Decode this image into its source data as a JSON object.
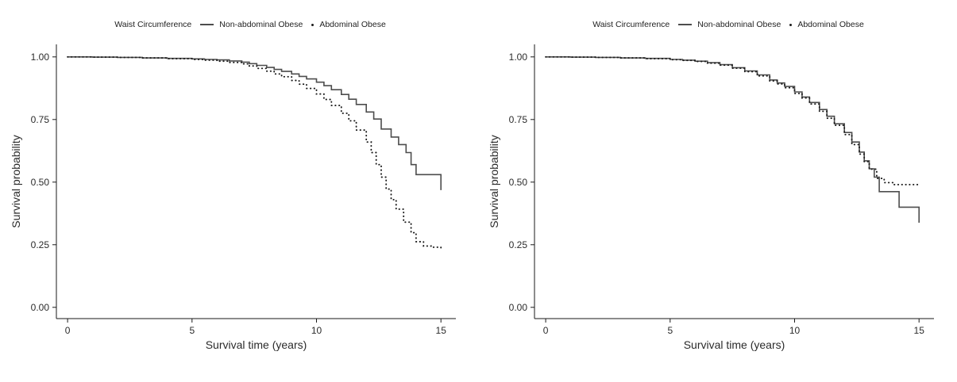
{
  "figure": {
    "background": "#ffffff",
    "line_color_solid": "#4d4d4d",
    "line_color_dotted": "#1b1b1b"
  },
  "chart_data": [
    {
      "type": "line",
      "subtype": "step-after",
      "title": "",
      "legend_title": "Waist Circumference",
      "legend_position": "top",
      "xlabel": "Survival time (years)",
      "ylabel": "Survival probability",
      "xlim": [
        -0.45,
        15.6
      ],
      "ylim": [
        -0.045,
        1.05
      ],
      "xticks": [
        0,
        5,
        10,
        15
      ],
      "xtick_labels": [
        "0",
        "5",
        "10",
        "15"
      ],
      "yticks": [
        0,
        0.25,
        0.5,
        0.75,
        1
      ],
      "ytick_labels": [
        "0.00",
        "0.25",
        "0.50",
        "0.75",
        "1.00"
      ],
      "grid": false,
      "series": [
        {
          "name": "Non-abdominal Obese",
          "style": "solid",
          "color": "#4d4d4d",
          "points": [
            [
              0,
              1
            ],
            [
              1,
              0.999
            ],
            [
              2,
              0.998
            ],
            [
              3,
              0.996
            ],
            [
              4,
              0.994
            ],
            [
              5,
              0.992
            ],
            [
              5.5,
              0.99
            ],
            [
              6,
              0.988
            ],
            [
              6.5,
              0.984
            ],
            [
              7,
              0.979
            ],
            [
              7.3,
              0.973
            ],
            [
              7.6,
              0.966
            ],
            [
              8,
              0.958
            ],
            [
              8.3,
              0.95
            ],
            [
              8.6,
              0.942
            ],
            [
              9,
              0.932
            ],
            [
              9.3,
              0.922
            ],
            [
              9.6,
              0.912
            ],
            [
              10,
              0.899
            ],
            [
              10.3,
              0.885
            ],
            [
              10.6,
              0.869
            ],
            [
              11,
              0.85
            ],
            [
              11.3,
              0.831
            ],
            [
              11.6,
              0.81
            ],
            [
              12,
              0.78
            ],
            [
              12.3,
              0.752
            ],
            [
              12.6,
              0.712
            ],
            [
              13,
              0.68
            ],
            [
              13.3,
              0.65
            ],
            [
              13.6,
              0.618
            ],
            [
              13.8,
              0.57
            ],
            [
              14,
              0.53
            ],
            [
              15,
              0.468
            ]
          ]
        },
        {
          "name": "Abdominal Obese",
          "style": "dotted",
          "color": "#1b1b1b",
          "points": [
            [
              0,
              1
            ],
            [
              1,
              0.999
            ],
            [
              2,
              0.998
            ],
            [
              3,
              0.996
            ],
            [
              4,
              0.993
            ],
            [
              5,
              0.99
            ],
            [
              5.5,
              0.987
            ],
            [
              6,
              0.983
            ],
            [
              6.5,
              0.978
            ],
            [
              7,
              0.972
            ],
            [
              7.3,
              0.964
            ],
            [
              7.6,
              0.954
            ],
            [
              8,
              0.943
            ],
            [
              8.3,
              0.932
            ],
            [
              8.6,
              0.921
            ],
            [
              9,
              0.906
            ],
            [
              9.3,
              0.891
            ],
            [
              9.6,
              0.874
            ],
            [
              10,
              0.852
            ],
            [
              10.3,
              0.83
            ],
            [
              10.6,
              0.806
            ],
            [
              11,
              0.775
            ],
            [
              11.3,
              0.745
            ],
            [
              11.6,
              0.708
            ],
            [
              12,
              0.66
            ],
            [
              12.2,
              0.618
            ],
            [
              12.4,
              0.57
            ],
            [
              12.6,
              0.52
            ],
            [
              12.8,
              0.472
            ],
            [
              13,
              0.43
            ],
            [
              13.2,
              0.392
            ],
            [
              13.5,
              0.34
            ],
            [
              13.8,
              0.298
            ],
            [
              14,
              0.262
            ],
            [
              14.3,
              0.245
            ],
            [
              14.6,
              0.24
            ],
            [
              15,
              0.238
            ]
          ]
        }
      ]
    },
    {
      "type": "line",
      "subtype": "step-after",
      "title": "",
      "legend_title": "Waist Circumference",
      "legend_position": "top",
      "xlabel": "Survival time (years)",
      "ylabel": "Survival probability",
      "xlim": [
        -0.45,
        15.6
      ],
      "ylim": [
        -0.045,
        1.05
      ],
      "xticks": [
        0,
        5,
        10,
        15
      ],
      "xtick_labels": [
        "0",
        "5",
        "10",
        "15"
      ],
      "yticks": [
        0,
        0.25,
        0.5,
        0.75,
        1
      ],
      "ytick_labels": [
        "0.00",
        "0.25",
        "0.50",
        "0.75",
        "1.00"
      ],
      "grid": false,
      "series": [
        {
          "name": "Non-abdominal Obese",
          "style": "solid",
          "color": "#4d4d4d",
          "points": [
            [
              0,
              1
            ],
            [
              1,
              0.999
            ],
            [
              2,
              0.998
            ],
            [
              3,
              0.996
            ],
            [
              4,
              0.994
            ],
            [
              5,
              0.99
            ],
            [
              5.5,
              0.987
            ],
            [
              6,
              0.983
            ],
            [
              6.5,
              0.977
            ],
            [
              7,
              0.969
            ],
            [
              7.5,
              0.957
            ],
            [
              8,
              0.944
            ],
            [
              8.5,
              0.928
            ],
            [
              9,
              0.908
            ],
            [
              9.3,
              0.896
            ],
            [
              9.6,
              0.882
            ],
            [
              10,
              0.86
            ],
            [
              10.3,
              0.84
            ],
            [
              10.6,
              0.818
            ],
            [
              11,
              0.79
            ],
            [
              11.3,
              0.763
            ],
            [
              11.6,
              0.733
            ],
            [
              12,
              0.698
            ],
            [
              12.3,
              0.66
            ],
            [
              12.6,
              0.62
            ],
            [
              12.8,
              0.585
            ],
            [
              13,
              0.553
            ],
            [
              13.2,
              0.52
            ],
            [
              13.4,
              0.462
            ],
            [
              14.2,
              0.4
            ],
            [
              15,
              0.338
            ]
          ]
        },
        {
          "name": "Abdominal Obese",
          "style": "dotted",
          "color": "#1b1b1b",
          "points": [
            [
              0,
              1
            ],
            [
              1,
              0.999
            ],
            [
              2,
              0.998
            ],
            [
              3,
              0.996
            ],
            [
              4,
              0.993
            ],
            [
              5,
              0.989
            ],
            [
              5.5,
              0.986
            ],
            [
              6,
              0.982
            ],
            [
              6.5,
              0.975
            ],
            [
              7,
              0.967
            ],
            [
              7.5,
              0.955
            ],
            [
              8,
              0.941
            ],
            [
              8.5,
              0.924
            ],
            [
              9,
              0.904
            ],
            [
              9.3,
              0.892
            ],
            [
              9.6,
              0.877
            ],
            [
              10,
              0.854
            ],
            [
              10.3,
              0.836
            ],
            [
              10.6,
              0.812
            ],
            [
              11,
              0.783
            ],
            [
              11.3,
              0.755
            ],
            [
              11.6,
              0.727
            ],
            [
              12,
              0.69
            ],
            [
              12.3,
              0.65
            ],
            [
              12.6,
              0.612
            ],
            [
              12.8,
              0.582
            ],
            [
              13,
              0.552
            ],
            [
              13.3,
              0.515
            ],
            [
              13.6,
              0.498
            ],
            [
              14,
              0.49
            ],
            [
              15,
              0.488
            ]
          ]
        }
      ]
    }
  ]
}
